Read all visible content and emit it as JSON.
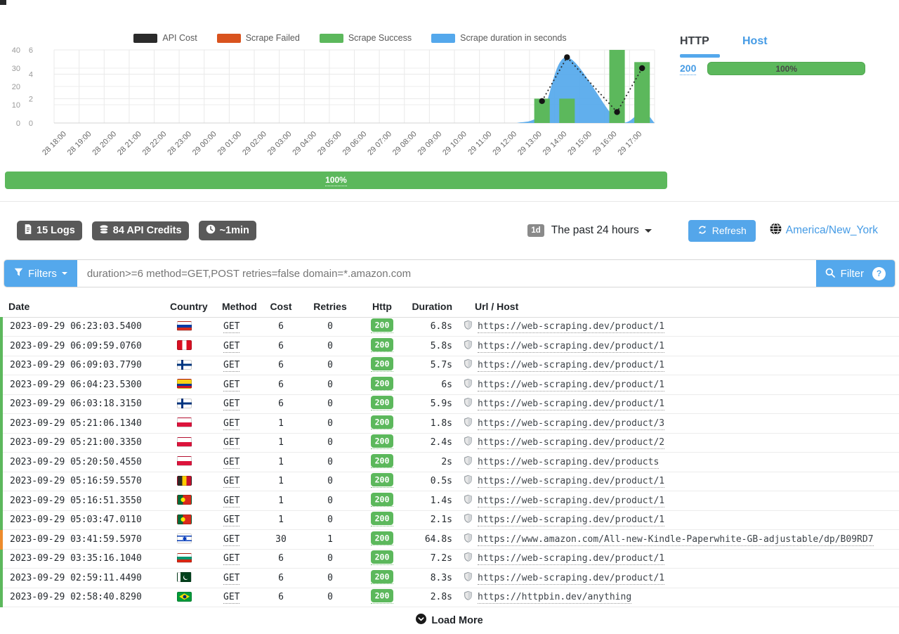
{
  "chart_data": {
    "type": "mixed",
    "title": "",
    "legend_position": "top",
    "grid": true,
    "categories": [
      "28 18:00",
      "28 19:00",
      "28 20:00",
      "28 21:00",
      "28 22:00",
      "28 23:00",
      "29 00:00",
      "29 01:00",
      "29 02:00",
      "29 03:00",
      "29 04:00",
      "29 05:00",
      "29 06:00",
      "29 07:00",
      "29 08:00",
      "29 09:00",
      "29 10:00",
      "29 11:00",
      "29 12:00",
      "29 13:00",
      "29 14:00",
      "29 15:00",
      "29 16:00",
      "29 17:00"
    ],
    "axes": {
      "y_left": {
        "ticks": [
          0,
          10,
          20,
          30,
          40
        ],
        "max": 40
      },
      "y_left_inner": {
        "ticks": [
          0,
          2,
          4,
          6
        ],
        "max": 6
      }
    },
    "series": [
      {
        "name": "API Cost",
        "type": "line",
        "style": "dotted-with-points",
        "axis": "y_left",
        "color": "#2b2b2b",
        "values": [
          null,
          null,
          null,
          null,
          null,
          null,
          null,
          null,
          null,
          null,
          null,
          null,
          null,
          null,
          null,
          null,
          null,
          null,
          null,
          12,
          36,
          null,
          6,
          30
        ]
      },
      {
        "name": "Scrape Failed",
        "type": "bar",
        "axis": "y_left_inner",
        "color": "#d9531e",
        "values": [
          0,
          0,
          0,
          0,
          0,
          0,
          0,
          0,
          0,
          0,
          0,
          0,
          0,
          0,
          0,
          0,
          0,
          0,
          0,
          0,
          0,
          0,
          0,
          0
        ]
      },
      {
        "name": "Scrape Success",
        "type": "bar",
        "axis": "y_left_inner",
        "color": "#5cb85c",
        "values": [
          0,
          0,
          0,
          0,
          0,
          0,
          0,
          0,
          0,
          0,
          0,
          0,
          0,
          0,
          0,
          0,
          0,
          0,
          0,
          2,
          2,
          0,
          6,
          5
        ]
      },
      {
        "name": "Scrape duration in seconds",
        "type": "area",
        "axis": "y_left",
        "color": "#54a8ec",
        "values": [
          null,
          null,
          null,
          null,
          null,
          null,
          null,
          null,
          null,
          null,
          null,
          null,
          null,
          null,
          null,
          null,
          null,
          null,
          null,
          5.5,
          36,
          null,
          1.7,
          6
        ]
      }
    ]
  },
  "summary_bar": {
    "label": "100%"
  },
  "status_panel": {
    "tabs": [
      {
        "label": "HTTP",
        "active": true
      },
      {
        "label": "Host",
        "active": false
      }
    ],
    "rows": [
      {
        "code": "200",
        "percent": "100%"
      }
    ]
  },
  "stats": {
    "logs": "15 Logs",
    "credits": "84 API Credits",
    "time": "~1min"
  },
  "time_range": {
    "badge": "1d",
    "label": "The past 24 hours"
  },
  "refresh_label": "Refresh",
  "timezone": "America/New_York",
  "filter": {
    "filters_label": "Filters",
    "query": "duration>=6 method=GET,POST retries=false domain=*.amazon.com",
    "filter_label": "Filter",
    "help_label": "?"
  },
  "table": {
    "columns": [
      "Date",
      "Country",
      "Method",
      "Cost",
      "Retries",
      "Http",
      "Duration",
      "Url / Host"
    ],
    "rows": [
      {
        "date": "2023-09-29 06:23:03.5400",
        "country": "Russia",
        "country_code": "ru",
        "method": "GET",
        "cost": "6",
        "retries": "0",
        "http": "200",
        "duration": "6.8s",
        "url": "https://web-scraping.dev/product/1",
        "status": "success"
      },
      {
        "date": "2023-09-29 06:09:59.0760",
        "country": "Peru",
        "country_code": "pe",
        "method": "GET",
        "cost": "6",
        "retries": "0",
        "http": "200",
        "duration": "5.8s",
        "url": "https://web-scraping.dev/product/1",
        "status": "success"
      },
      {
        "date": "2023-09-29 06:09:03.7790",
        "country": "Finland",
        "country_code": "fi",
        "method": "GET",
        "cost": "6",
        "retries": "0",
        "http": "200",
        "duration": "5.7s",
        "url": "https://web-scraping.dev/product/1",
        "status": "success"
      },
      {
        "date": "2023-09-29 06:04:23.5300",
        "country": "Colombia",
        "country_code": "co",
        "method": "GET",
        "cost": "6",
        "retries": "0",
        "http": "200",
        "duration": "6s",
        "url": "https://web-scraping.dev/product/1",
        "status": "success"
      },
      {
        "date": "2023-09-29 06:03:18.3150",
        "country": "Finland",
        "country_code": "fi",
        "method": "GET",
        "cost": "6",
        "retries": "0",
        "http": "200",
        "duration": "5.9s",
        "url": "https://web-scraping.dev/product/1",
        "status": "success"
      },
      {
        "date": "2023-09-29 05:21:06.1340",
        "country": "Poland",
        "country_code": "pl",
        "method": "GET",
        "cost": "1",
        "retries": "0",
        "http": "200",
        "duration": "1.8s",
        "url": "https://web-scraping.dev/product/3",
        "status": "success"
      },
      {
        "date": "2023-09-29 05:21:00.3350",
        "country": "Poland",
        "country_code": "pl",
        "method": "GET",
        "cost": "1",
        "retries": "0",
        "http": "200",
        "duration": "2.4s",
        "url": "https://web-scraping.dev/product/2",
        "status": "success"
      },
      {
        "date": "2023-09-29 05:20:50.4550",
        "country": "Poland",
        "country_code": "pl",
        "method": "GET",
        "cost": "1",
        "retries": "0",
        "http": "200",
        "duration": "2s",
        "url": "https://web-scraping.dev/products",
        "status": "success"
      },
      {
        "date": "2023-09-29 05:16:59.5570",
        "country": "Belgium",
        "country_code": "be",
        "method": "GET",
        "cost": "1",
        "retries": "0",
        "http": "200",
        "duration": "0.5s",
        "url": "https://web-scraping.dev/product/1",
        "status": "success"
      },
      {
        "date": "2023-09-29 05:16:51.3550",
        "country": "Portugal",
        "country_code": "pt",
        "method": "GET",
        "cost": "1",
        "retries": "0",
        "http": "200",
        "duration": "1.4s",
        "url": "https://web-scraping.dev/product/1",
        "status": "success"
      },
      {
        "date": "2023-09-29 05:03:47.0110",
        "country": "Portugal",
        "country_code": "pt",
        "method": "GET",
        "cost": "1",
        "retries": "0",
        "http": "200",
        "duration": "2.1s",
        "url": "https://web-scraping.dev/product/1",
        "status": "success"
      },
      {
        "date": "2023-09-29 03:41:59.5970",
        "country": "Israel",
        "country_code": "il",
        "method": "GET",
        "cost": "30",
        "retries": "1",
        "http": "200",
        "duration": "64.8s",
        "url": "https://www.amazon.com/All-new-Kindle-Paperwhite-GB-adjustable/dp/B09RD7",
        "status": "warning"
      },
      {
        "date": "2023-09-29 03:35:16.1040",
        "country": "Bulgaria",
        "country_code": "bg",
        "method": "GET",
        "cost": "6",
        "retries": "0",
        "http": "200",
        "duration": "7.2s",
        "url": "https://web-scraping.dev/product/1",
        "status": "success"
      },
      {
        "date": "2023-09-29 02:59:11.4490",
        "country": "Pakistan",
        "country_code": "pk",
        "method": "GET",
        "cost": "6",
        "retries": "0",
        "http": "200",
        "duration": "8.3s",
        "url": "https://web-scraping.dev/product/1",
        "status": "success"
      },
      {
        "date": "2023-09-29 02:58:40.8290",
        "country": "Brazil",
        "country_code": "br",
        "method": "GET",
        "cost": "6",
        "retries": "0",
        "http": "200",
        "duration": "2.8s",
        "url": "https://httpbin.dev/anything",
        "status": "success"
      }
    ]
  },
  "load_more_label": "Load More",
  "colors": {
    "success_green": "#5cb85c",
    "failed_orange": "#d9531e",
    "duration_blue": "#54a8ec",
    "api_cost_black": "#2b2b2b",
    "accent_blue": "#54a6ea",
    "link_blue": "#459be5",
    "badge_gray": "#595959",
    "warning_orange": "#ed8b2d"
  }
}
